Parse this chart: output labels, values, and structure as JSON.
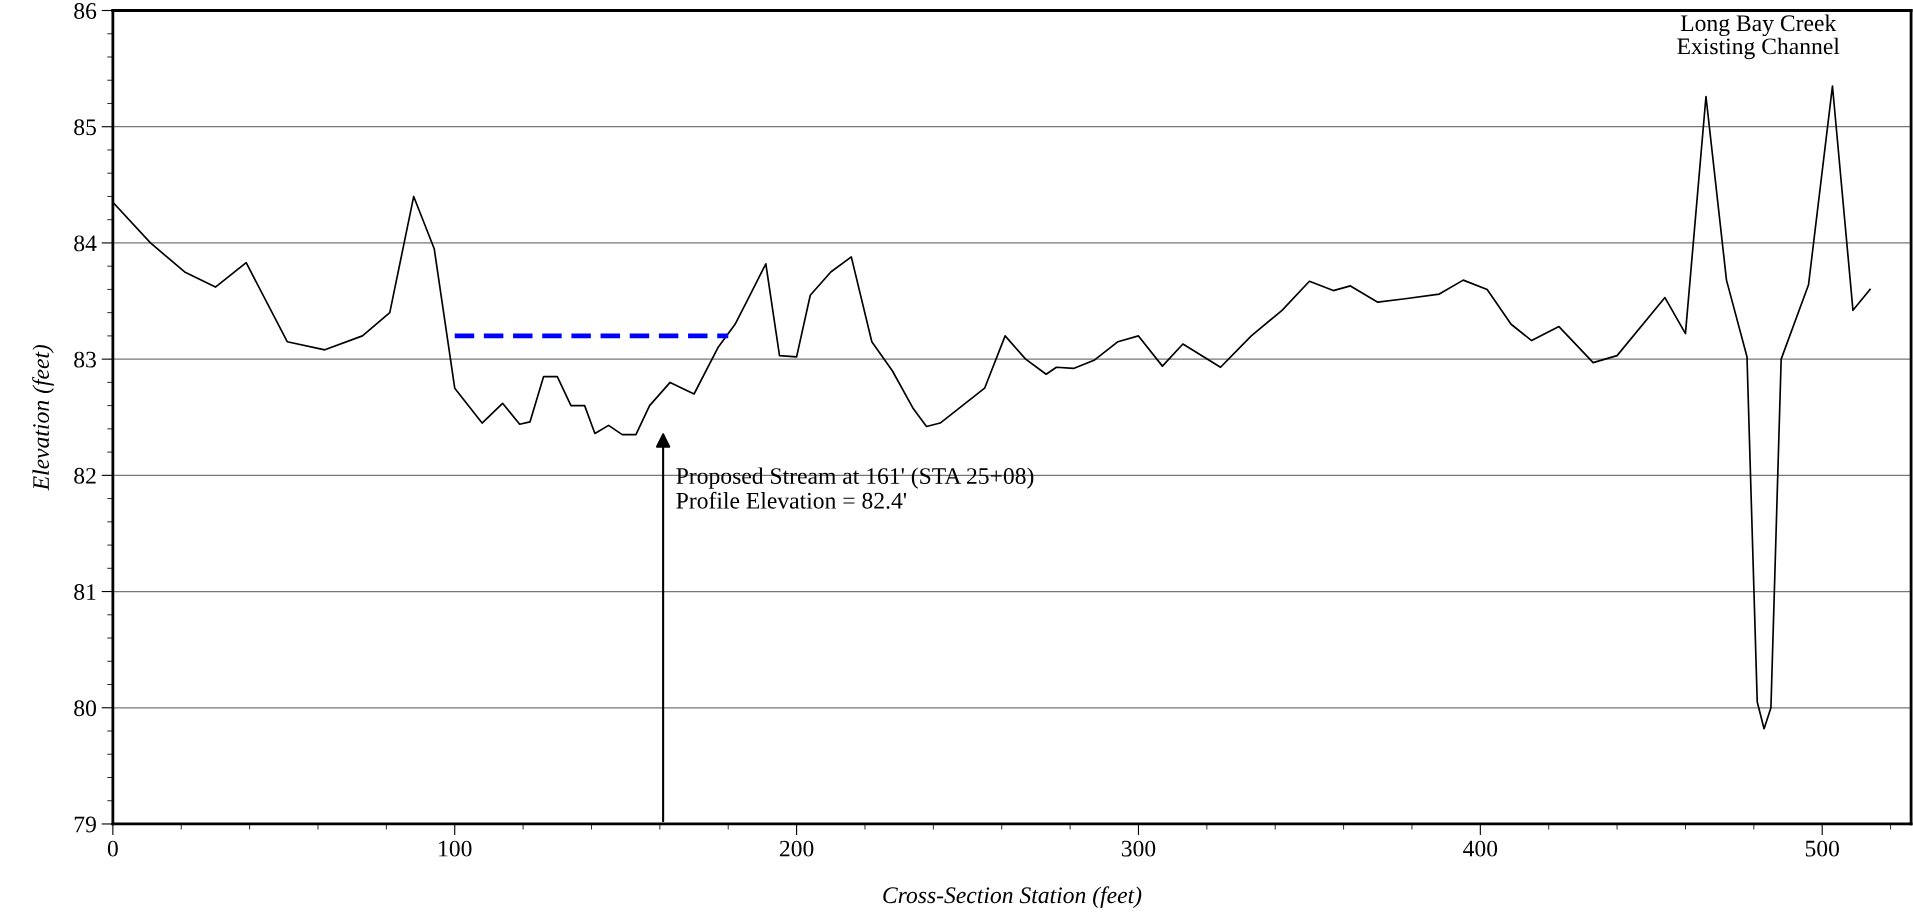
{
  "chart_data": {
    "type": "line",
    "xlabel": "Cross-Section Station (feet)",
    "ylabel": "Elevation (feet)",
    "xlim": [
      0,
      526
    ],
    "xticks": [
      0,
      100,
      200,
      300,
      400,
      500
    ],
    "ylim": [
      79,
      86
    ],
    "yticks": [
      79,
      80,
      81,
      82,
      83,
      84,
      85,
      86
    ],
    "grid": "y",
    "legend": false,
    "marker": "none",
    "series": [
      {
        "color": "#000000",
        "line_style": "solid",
        "x": [
          0,
          11,
          21,
          30,
          39,
          51,
          62,
          73,
          81,
          88,
          94,
          100,
          108,
          114,
          119,
          122,
          126,
          130,
          134,
          138,
          141,
          145,
          149,
          153,
          157,
          163,
          170,
          177,
          182,
          186,
          191,
          195,
          200,
          204,
          210,
          216,
          222,
          228,
          234,
          238,
          242,
          255,
          261,
          267,
          273,
          276,
          281,
          287,
          294,
          300,
          307,
          313,
          324,
          333,
          342,
          350,
          357,
          362,
          370,
          378,
          388,
          395,
          402,
          409,
          415,
          423,
          433,
          440,
          454,
          460,
          466,
          472,
          478,
          481,
          483,
          485,
          488,
          496,
          503,
          509,
          514
        ],
        "values": [
          84.35,
          84.0,
          83.75,
          83.62,
          83.83,
          83.15,
          83.08,
          83.2,
          83.4,
          84.4,
          83.95,
          82.75,
          82.45,
          82.62,
          82.44,
          82.46,
          82.85,
          82.85,
          82.6,
          82.6,
          82.36,
          82.43,
          82.35,
          82.35,
          82.6,
          82.8,
          82.7,
          83.1,
          83.3,
          83.53,
          83.82,
          83.03,
          83.02,
          83.55,
          83.75,
          83.88,
          83.15,
          82.9,
          82.58,
          82.42,
          82.45,
          82.75,
          83.2,
          83.0,
          82.87,
          82.93,
          82.92,
          82.99,
          83.15,
          83.2,
          82.94,
          83.13,
          82.93,
          83.2,
          83.42,
          83.67,
          83.59,
          83.63,
          83.49,
          83.52,
          83.56,
          83.68,
          83.6,
          83.3,
          83.16,
          83.28,
          82.97,
          83.03,
          83.53,
          83.22,
          85.26,
          83.68,
          83.02,
          80.05,
          79.82,
          80.0,
          83.0,
          83.64,
          85.35,
          83.42,
          83.6
        ]
      },
      {
        "color": "#0000ff",
        "line_style": "dashed",
        "x": [
          100,
          180
        ],
        "values": [
          83.2,
          83.2
        ]
      }
    ],
    "annotations": [
      "Proposed Stream at 161' (STA 25+08)\nProfile Elevation = 82.4'",
      "Long Bay Creek\nExisting Channel"
    ]
  }
}
